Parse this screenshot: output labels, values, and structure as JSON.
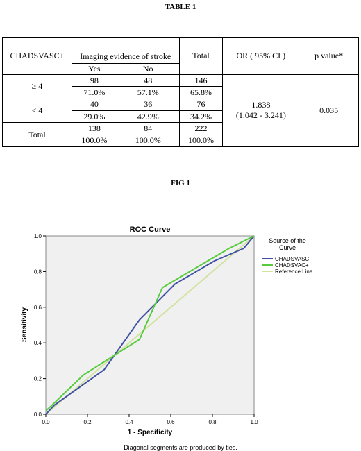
{
  "table_title": "TABLE 1",
  "fig_title": "FIG 1",
  "table": {
    "col_head_1": "CHADSVASC+",
    "col_head_2": "Imaging evidence of stroke",
    "col_head_3": "Total",
    "col_head_4": "OR ( 95% CI )",
    "col_head_5": "p value*",
    "sub_yes": "Yes",
    "sub_no": "No",
    "rows": [
      {
        "label": "≥ 4",
        "yes_n": "98",
        "no_n": "48",
        "total_n": "146",
        "yes_pct": "71.0%",
        "no_pct": "57.1%",
        "total_pct": "65.8%"
      },
      {
        "label": "< 4",
        "yes_n": "40",
        "no_n": "36",
        "total_n": "76",
        "yes_pct": "29.0%",
        "no_pct": "42.9%",
        "total_pct": "34.2%"
      },
      {
        "label": "Total",
        "yes_n": "138",
        "no_n": "84",
        "total_n": "222",
        "yes_pct": "100.0%",
        "no_pct": "100.0%",
        "total_pct": "100.0%"
      }
    ],
    "or_value": "1.838",
    "or_ci": "(1.042 - 3.241)",
    "p_value": "0.035"
  },
  "chart_data": {
    "type": "line",
    "title": "ROC Curve",
    "xlabel": "1 - Specificity",
    "ylabel": "Sensitivity",
    "xlim": [
      0,
      1
    ],
    "ylim": [
      0,
      1
    ],
    "xticks": [
      "0.0",
      "0.2",
      "0.4",
      "0.6",
      "0.8",
      "1.0"
    ],
    "yticks": [
      "0.0",
      "0.2",
      "0.4",
      "0.6",
      "0.8",
      "1.0"
    ],
    "grid": false,
    "legend_title": "Source of the Curve",
    "legend_position": "right",
    "footnote": "Diagonal segments are produced by ties.",
    "series": [
      {
        "name": "CHADSVASC",
        "color": "#3f51a3",
        "x": [
          0,
          0.04,
          0.28,
          0.45,
          0.62,
          0.81,
          0.95,
          1.0
        ],
        "y": [
          0,
          0.05,
          0.25,
          0.53,
          0.73,
          0.86,
          0.93,
          1.0
        ]
      },
      {
        "name": "CHADSVAC+",
        "color": "#55cc3c",
        "x": [
          0,
          0.02,
          0.18,
          0.45,
          0.56,
          0.88,
          1.0
        ],
        "y": [
          0.02,
          0.04,
          0.22,
          0.42,
          0.71,
          0.93,
          1.0
        ]
      },
      {
        "name": "Reference Line",
        "color": "#d2e2a0",
        "x": [
          0,
          1
        ],
        "y": [
          0,
          1
        ]
      }
    ],
    "colors": {
      "plot_background": "#f0f0f0",
      "frame": "#888888"
    }
  }
}
